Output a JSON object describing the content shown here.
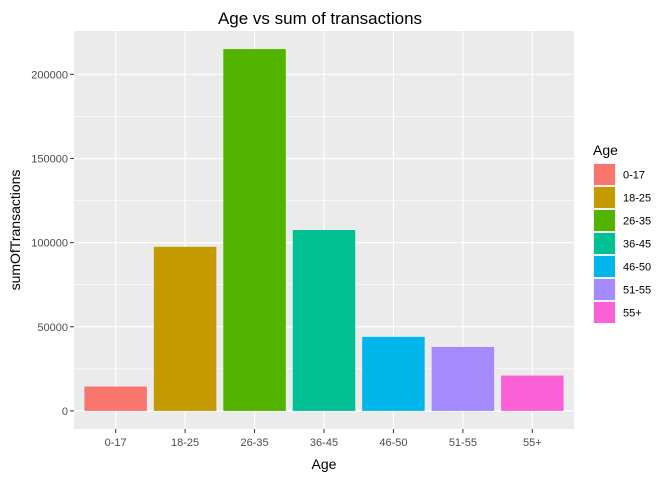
{
  "chart_data": {
    "type": "bar",
    "title": "Age vs sum of transactions",
    "xlabel": "Age",
    "ylabel": "sumOfTransactions",
    "categories": [
      "0-17",
      "18-25",
      "26-35",
      "36-45",
      "46-50",
      "51-55",
      "55+"
    ],
    "values": [
      14500,
      97500,
      215000,
      107500,
      44000,
      38000,
      21000
    ],
    "colors": [
      "#F8766D",
      "#C49A00",
      "#53B400",
      "#00C094",
      "#00B6EB",
      "#A58AFF",
      "#FB61D7"
    ],
    "ylim": [
      -10750,
      225750
    ],
    "yticks": [
      0,
      50000,
      100000,
      150000,
      200000
    ],
    "ytick_labels": [
      "0",
      "50000",
      "100000",
      "150000",
      "200000"
    ],
    "grid": true,
    "panel_background": "#EBEBEB",
    "legend": {
      "title": "Age",
      "placement": "right",
      "entries": [
        "0-17",
        "18-25",
        "26-35",
        "36-45",
        "46-50",
        "51-55",
        "55+"
      ]
    }
  }
}
